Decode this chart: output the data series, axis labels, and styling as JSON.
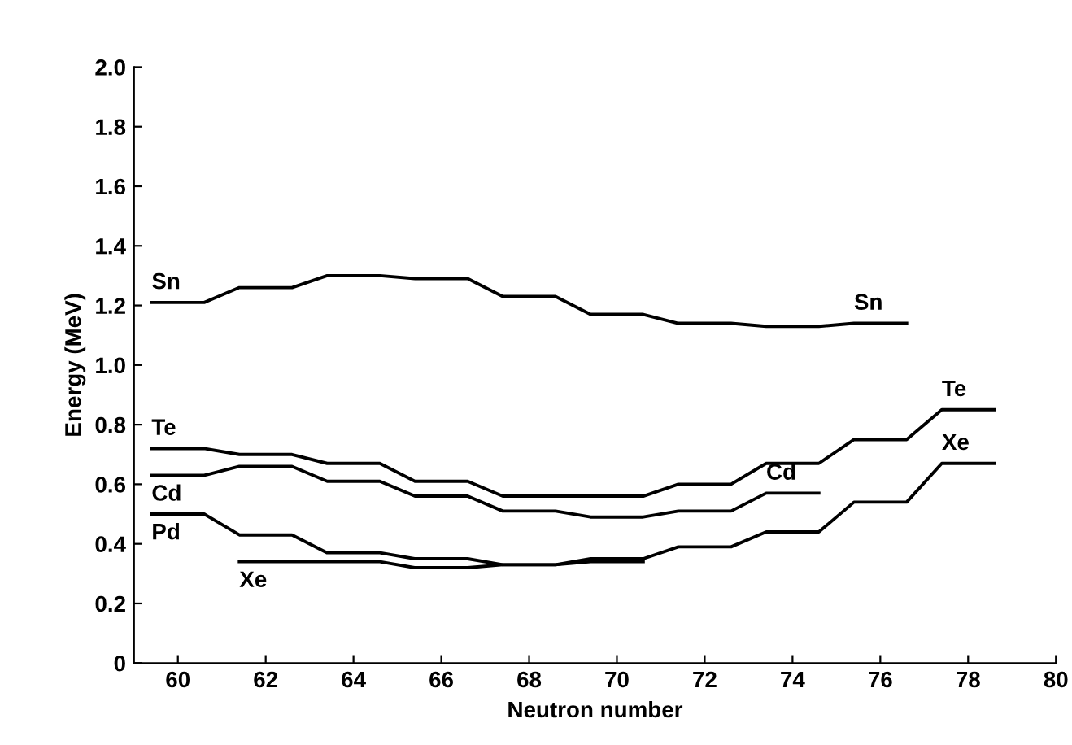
{
  "chart_data": {
    "type": "line",
    "xlabel": "Neutron number",
    "ylabel": "Energy (MeV)",
    "xlim": [
      59,
      80
    ],
    "xticks": [
      60,
      62,
      64,
      66,
      68,
      70,
      72,
      74,
      76,
      78,
      80
    ],
    "ylim": [
      0,
      2
    ],
    "yticks": [
      0,
      0.2,
      0.4,
      0.6,
      0.8,
      {
        "value": 1,
        "label": "1.0"
      },
      1.2,
      1.4,
      1.6,
      1.8,
      {
        "value": 2,
        "label": "2.0"
      }
    ],
    "grid": false,
    "legend": false,
    "marker": "none",
    "line_style": "solid",
    "series": [
      {
        "name": "Sn",
        "color": "#000000",
        "x": [
          59.4,
          60.6,
          61.4,
          62.6,
          63.4,
          64.6,
          65.4,
          66.6,
          67.4,
          68.6,
          69.4,
          70.6,
          71.4,
          72.6,
          73.4,
          74.6,
          75.4,
          76.6
        ],
        "values": [
          1.21,
          1.21,
          1.26,
          1.26,
          1.3,
          1.3,
          1.29,
          1.29,
          1.23,
          1.23,
          1.17,
          1.17,
          1.14,
          1.14,
          1.13,
          1.13,
          1.14,
          1.14
        ]
      },
      {
        "name": "Te",
        "color": "#000000",
        "x": [
          59.4,
          60.6,
          61.4,
          62.6,
          63.4,
          64.6,
          65.4,
          66.6,
          67.4,
          68.6,
          69.4,
          70.6,
          71.4,
          72.6,
          73.4,
          74.6,
          75.4,
          76.6,
          77.4,
          78.6
        ],
        "values": [
          0.72,
          0.72,
          0.7,
          0.7,
          0.67,
          0.67,
          0.61,
          0.61,
          0.56,
          0.56,
          0.56,
          0.56,
          0.6,
          0.6,
          0.67,
          0.67,
          0.75,
          0.75,
          0.85,
          0.85
        ]
      },
      {
        "name": "Cd",
        "color": "#000000",
        "x": [
          59.4,
          60.6,
          61.4,
          62.6,
          63.4,
          64.6,
          65.4,
          66.6,
          67.4,
          68.6,
          69.4,
          70.6,
          71.4,
          72.6,
          73.4,
          74.6
        ],
        "values": [
          0.63,
          0.63,
          0.66,
          0.66,
          0.61,
          0.61,
          0.56,
          0.56,
          0.51,
          0.51,
          0.49,
          0.49,
          0.51,
          0.51,
          0.57,
          0.57
        ]
      },
      {
        "name": "Pd",
        "color": "#000000",
        "x": [
          59.4,
          60.6,
          61.4,
          62.6,
          63.4,
          64.6,
          65.4,
          66.6,
          67.4,
          68.6,
          69.4,
          70.6
        ],
        "values": [
          0.5,
          0.5,
          0.43,
          0.43,
          0.37,
          0.37,
          0.35,
          0.35,
          0.33,
          0.33,
          0.34,
          0.34
        ]
      },
      {
        "name": "Xe",
        "color": "#000000",
        "x": [
          61.4,
          62.6,
          63.4,
          64.6,
          65.4,
          66.6,
          67.4,
          68.6,
          69.4,
          70.6,
          71.4,
          72.6,
          73.4,
          74.6,
          75.4,
          76.6,
          77.4,
          78.6
        ],
        "values": [
          0.34,
          0.34,
          0.34,
          0.34,
          0.32,
          0.32,
          0.33,
          0.33,
          0.35,
          0.35,
          0.39,
          0.39,
          0.44,
          0.44,
          0.54,
          0.54,
          0.67,
          0.67
        ]
      }
    ],
    "annotations": [
      {
        "text": "Sn",
        "x": 75.4,
        "y": 1.14
      },
      {
        "text": "Te",
        "x": 77.4,
        "y": 0.85
      },
      {
        "text": "Cd",
        "x": 73.4,
        "y": 0.57
      },
      {
        "text": "Xe",
        "x": 77.4,
        "y": 0.67
      }
    ]
  }
}
